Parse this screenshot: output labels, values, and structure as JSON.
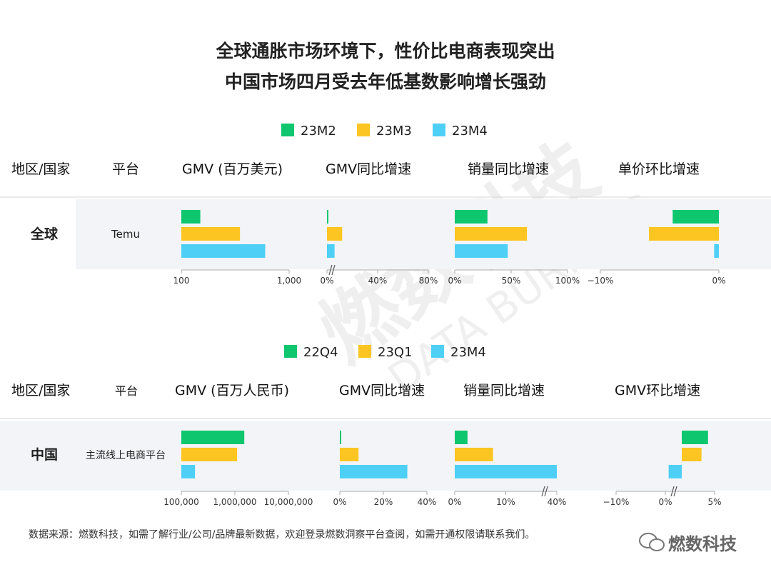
{
  "titles": [
    "全球通胀市场环境下，性价比电商表现突出",
    "中国市场四月受去年低基数影响增长强劲"
  ],
  "colors": {
    "s1": "#0ec66e",
    "s2": "#fcc521",
    "s3": "#4ecff5"
  },
  "watermark": {
    "main": "燃数科技",
    "sub": "DATA BURNING"
  },
  "footer": "数据来源：燃数科技，如需了解行业/公司/品牌最新数据，欢迎登录燃数洞察平台查阅，如需开通权限请联系我们。",
  "brand": "燃数科技",
  "chart_data": [
    {
      "type": "bar",
      "orientation": "horizontal",
      "legend": [
        "23M2",
        "23M3",
        "23M4"
      ],
      "headers": {
        "region": "地区/国家",
        "platform": "平台",
        "m1": "GMV (百万美元)",
        "m2": "GMV同比增速",
        "m3": "销量同比增速",
        "m4": "单价环比增速"
      },
      "rows": [
        {
          "region": "全球",
          "platform": "Temu"
        }
      ],
      "panels": [
        {
          "metric": "GMV (百万美元)",
          "scale": "log",
          "xlim": [
            100,
            1000
          ],
          "ticks": [
            "100",
            "1,000"
          ],
          "values": [
            150,
            350,
            600
          ]
        },
        {
          "metric": "GMV同比增速",
          "scale": "linear",
          "unit": "%",
          "xlim": [
            0,
            80
          ],
          "axis_break": true,
          "ticks": [
            "0%",
            "40%",
            "80%"
          ],
          "values": [
            0.8,
            12.0,
            6.0
          ]
        },
        {
          "metric": "销量同比增速",
          "scale": "linear",
          "unit": "%",
          "xlim": [
            0,
            100
          ],
          "ticks": [
            "0%",
            "50%",
            "100%"
          ],
          "values": [
            29,
            64,
            47
          ]
        },
        {
          "metric": "单价环比增速",
          "scale": "linear",
          "unit": "%",
          "xlim": [
            -10,
            0
          ],
          "ticks": [
            "−10%",
            "0%"
          ],
          "values": [
            -3.9,
            -5.9,
            -0.4
          ]
        }
      ]
    },
    {
      "type": "bar",
      "orientation": "horizontal",
      "legend": [
        "22Q4",
        "23Q1",
        "23M4"
      ],
      "headers": {
        "region": "地区/国家",
        "platform": "平台",
        "m1": "GMV (百万人民币)",
        "m2": "GMV同比增速",
        "m3": "销量同比增速",
        "m4": "GMV环比增速"
      },
      "rows": [
        {
          "region": "中国",
          "platform": "主流线上电商平台"
        }
      ],
      "panels": [
        {
          "metric": "GMV (百万人民币)",
          "scale": "log",
          "xlim": [
            100000,
            10000000
          ],
          "ticks": [
            "100,000",
            "1,000,000",
            "10,000,000"
          ],
          "values": [
            1500000,
            1100000,
            180000
          ]
        },
        {
          "metric": "GMV同比增速",
          "scale": "linear",
          "unit": "%",
          "xlim": [
            0,
            40
          ],
          "ticks": [
            "0%",
            "20%",
            "40%"
          ],
          "values": [
            0,
            8.6,
            31
          ]
        },
        {
          "metric": "销量同比增速",
          "scale": "linear",
          "unit": "%",
          "xlim": [
            0,
            40
          ],
          "axis_break": true,
          "ticks": [
            "0%",
            "10%",
            "40%"
          ],
          "values": [
            5,
            15,
            40
          ]
        },
        {
          "metric": "GMV环比增速",
          "scale": "linear",
          "unit": "%",
          "xlim": [
            -10,
            5
          ],
          "axis_break": true,
          "ticks": [
            "−10%",
            "0%",
            "5%"
          ],
          "values": [
            4.0,
            3.0,
            -2.0
          ]
        }
      ]
    }
  ]
}
